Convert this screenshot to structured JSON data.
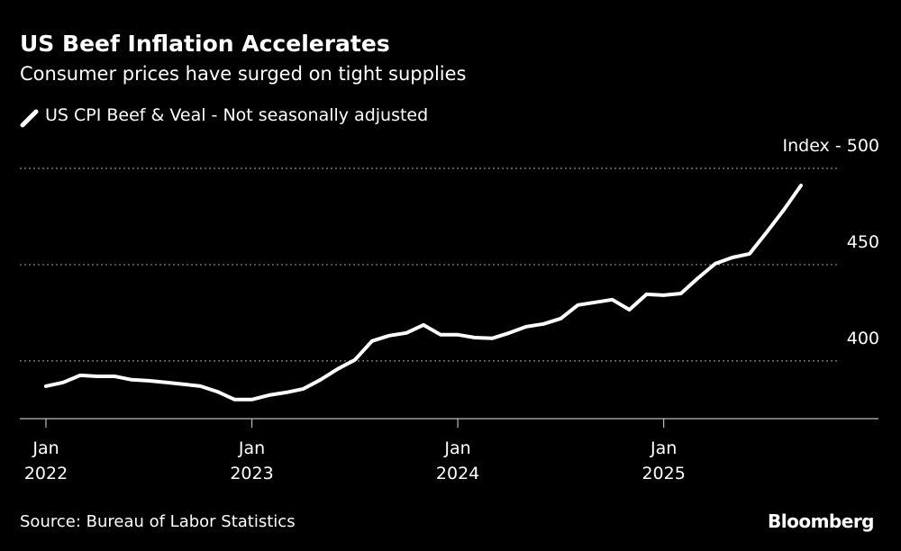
{
  "chart_data": {
    "type": "line",
    "title": "US Beef Inflation Accelerates",
    "subtitle": "Consumer prices have surged on tight supplies",
    "source": "Source: Bureau of Labor Statistics",
    "brand": "Bloomberg",
    "x": [
      "2022-01",
      "2022-02",
      "2022-03",
      "2022-04",
      "2022-05",
      "2022-06",
      "2022-07",
      "2022-08",
      "2022-09",
      "2022-10",
      "2022-11",
      "2022-12",
      "2023-01",
      "2023-02",
      "2023-03",
      "2023-04",
      "2023-05",
      "2023-06",
      "2023-07",
      "2023-08",
      "2023-09",
      "2023-10",
      "2023-11",
      "2023-12",
      "2024-01",
      "2024-02",
      "2024-03",
      "2024-04",
      "2024-05",
      "2024-06",
      "2024-07",
      "2024-08",
      "2024-09",
      "2024-10",
      "2024-11",
      "2024-12",
      "2025-01",
      "2025-02",
      "2025-03",
      "2025-04",
      "2025-05",
      "2025-06",
      "2025-07",
      "2025-08",
      "2025-09"
    ],
    "series": [
      {
        "name": "US CPI Beef & Veal - Not seasonally adjusted",
        "color": "#ffffff",
        "values": [
          386.9,
          388.8,
          392.5,
          392,
          392,
          390.2,
          389.7,
          388.8,
          387.9,
          386.9,
          384,
          379.9,
          379.9,
          382.2,
          383.6,
          385.5,
          390.2,
          395.8,
          400.5,
          410.3,
          413.1,
          414.5,
          418.7,
          413.6,
          413.6,
          412.1,
          411.7,
          414.5,
          417.8,
          419.2,
          422,
          429,
          430.4,
          431.8,
          426.6,
          434.6,
          434.1,
          435,
          443,
          450.5,
          453.7,
          455.6,
          466.8,
          478.5,
          491.1
        ]
      }
    ],
    "xlim": [
      "2022-01",
      "2025-09"
    ],
    "xticks": [
      {
        "value": "2022-01",
        "label": "Jan\n2022"
      },
      {
        "value": "2023-01",
        "label": "Jan\n2023"
      },
      {
        "value": "2024-01",
        "label": "Jan\n2024"
      },
      {
        "value": "2025-01",
        "label": "Jan\n2025"
      }
    ],
    "ylim": [
      370,
      500
    ],
    "yticks": [
      400,
      450,
      {
        "value": 500,
        "label": "Index - 500"
      }
    ],
    "grid": true
  }
}
